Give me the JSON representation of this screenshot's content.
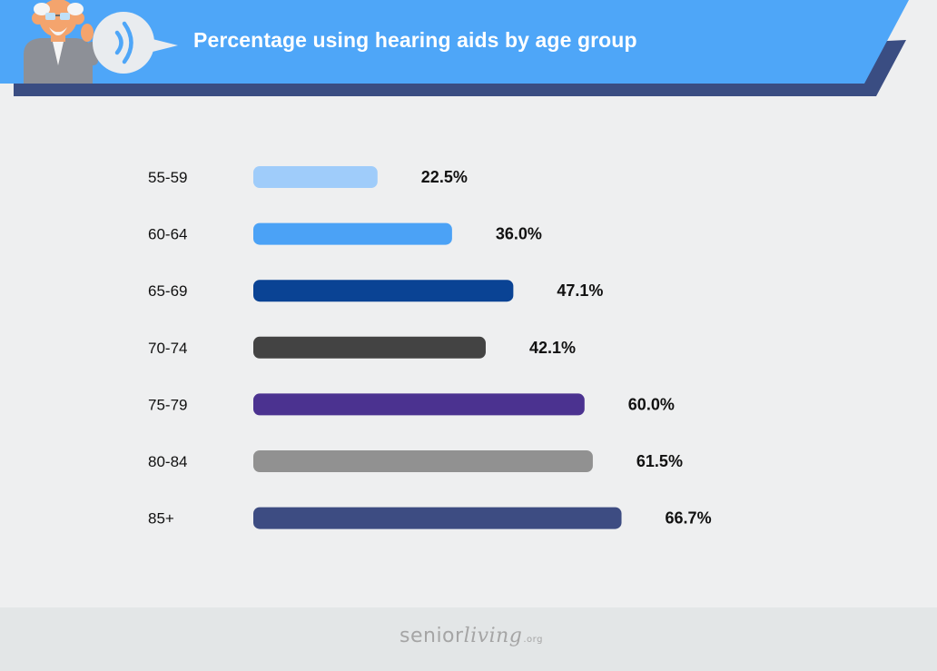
{
  "header": {
    "title": "Percentage using hearing aids by age group",
    "colors": {
      "band": "#4ea6f8",
      "shadow": "#3a4d82"
    }
  },
  "chart_data": {
    "type": "bar",
    "orientation": "horizontal",
    "title": "Percentage using hearing aids by age group",
    "categories": [
      "55-59",
      "60-64",
      "65-69",
      "70-74",
      "75-79",
      "80-84",
      "85+"
    ],
    "values": [
      22.5,
      36.0,
      47.1,
      42.1,
      60.0,
      61.5,
      66.7
    ],
    "value_labels": [
      "22.5%",
      "36.0%",
      "47.1%",
      "42.1%",
      "60.0%",
      "61.5%",
      "66.7%"
    ],
    "bar_colors": [
      "#9fccfa",
      "#4ba2f6",
      "#0a4394",
      "#434343",
      "#4b3290",
      "#919191",
      "#3d4c82"
    ],
    "unit": "%",
    "xlim": [
      0,
      100
    ],
    "grid": false,
    "legend": "none"
  },
  "footer": {
    "brand_senior": "senior",
    "brand_living": "living",
    "brand_org": ".org"
  }
}
